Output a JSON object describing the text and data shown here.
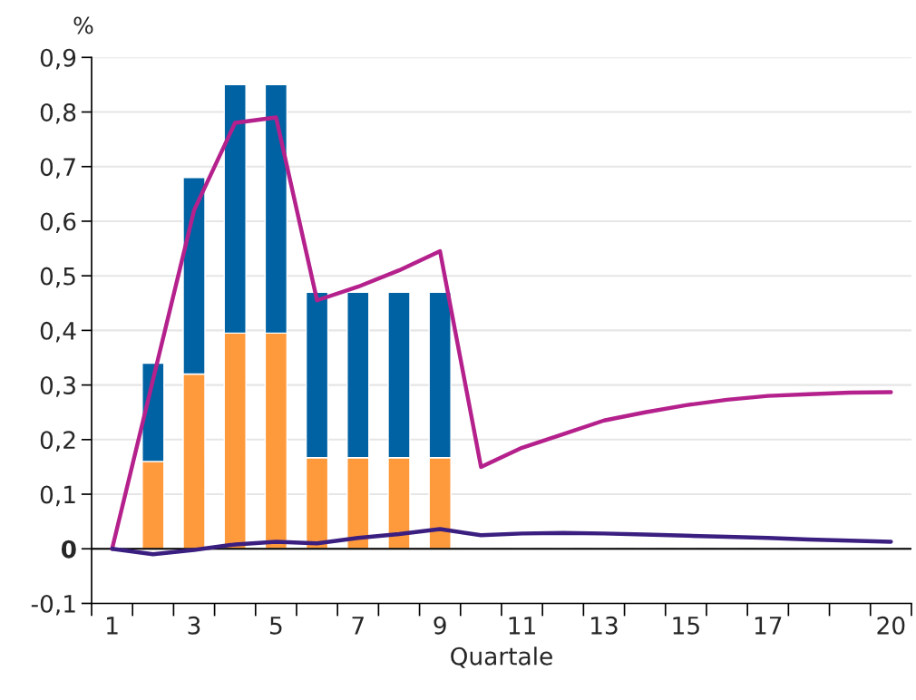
{
  "chart_data": {
    "type": "bar",
    "stacked": true,
    "ylabel": "%",
    "xlabel": "Quartale",
    "categories": [
      "1",
      null,
      "3",
      null,
      "5",
      null,
      "7",
      null,
      "9",
      null,
      "11",
      null,
      "13",
      null,
      "15",
      null,
      "17",
      null,
      null,
      "20"
    ],
    "series": [
      {
        "color": "#ff9a3c",
        "values": [
          null,
          0.16,
          0.32,
          0.395,
          0.395,
          0.167,
          0.167,
          0.167,
          0.167,
          null,
          null,
          null,
          null,
          null,
          null,
          null,
          null,
          null,
          null,
          null
        ]
      },
      {
        "color": "#0062a3",
        "values": [
          null,
          0.18,
          0.36,
          0.455,
          0.455,
          0.303,
          0.303,
          0.303,
          0.303,
          null,
          null,
          null,
          null,
          null,
          null,
          null,
          null,
          null,
          null,
          null
        ]
      },
      {
        "type": "line",
        "color": "#b5218c",
        "values": [
          0,
          0.31,
          0.62,
          0.78,
          0.79,
          0.455,
          0.48,
          0.51,
          0.545,
          0.15,
          0.185,
          0.21,
          0.235,
          0.25,
          0.263,
          0.273,
          0.28,
          0.283,
          0.286,
          0.287
        ]
      },
      {
        "type": "line",
        "color": "#3b1f80",
        "values": [
          0,
          -0.01,
          -0.002,
          0.008,
          0.013,
          0.01,
          0.02,
          0.027,
          0.036,
          0.025,
          0.028,
          0.029,
          0.028,
          0.026,
          0.024,
          0.022,
          0.02,
          0.017,
          0.015,
          0.013
        ]
      }
    ],
    "ylim": [
      -0.1,
      0.9
    ],
    "yticks": [
      {
        "value": -0.1,
        "label": "-0,1"
      },
      0,
      {
        "value": 0.1,
        "label": "0,1"
      },
      {
        "value": 0.2,
        "label": "0,2"
      },
      {
        "value": 0.3,
        "label": "0,3"
      },
      {
        "value": 0.4,
        "label": "0,4"
      },
      {
        "value": 0.5,
        "label": "0,5"
      },
      {
        "value": 0.6,
        "label": "0,6"
      },
      {
        "value": 0.7,
        "label": "0,7"
      },
      {
        "value": 0.8,
        "label": "0,8"
      },
      {
        "value": 0.9,
        "label": "0,9"
      }
    ],
    "ref_lines": [
      {
        "axis": "y",
        "value": 0,
        "color": "#000000"
      }
    ],
    "grid": "y",
    "legend": false
  }
}
